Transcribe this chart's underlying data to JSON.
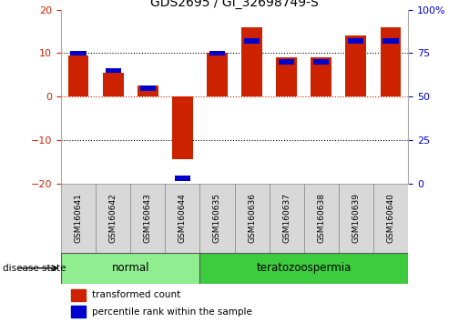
{
  "title": "GDS2695 / GI_32698749-S",
  "samples": [
    "GSM160641",
    "GSM160642",
    "GSM160643",
    "GSM160644",
    "GSM160635",
    "GSM160636",
    "GSM160637",
    "GSM160638",
    "GSM160639",
    "GSM160640"
  ],
  "transformed_count": [
    9.5,
    5.5,
    2.5,
    -14.5,
    10.0,
    16.0,
    9.0,
    9.0,
    14.0,
    16.0
  ],
  "percentile_rank_raw": [
    75,
    65,
    55,
    3,
    75,
    82,
    70,
    70,
    82,
    82
  ],
  "ylim_left": [
    -20,
    20
  ],
  "ylim_right": [
    0,
    100
  ],
  "yticks_left": [
    -20,
    -10,
    0,
    10,
    20
  ],
  "yticks_right": [
    0,
    25,
    50,
    75,
    100
  ],
  "groups": [
    {
      "label": "normal",
      "indices": [
        0,
        1,
        2,
        3
      ],
      "color": "#90ee90"
    },
    {
      "label": "teratozoospermia",
      "indices": [
        4,
        5,
        6,
        7,
        8,
        9
      ],
      "color": "#3dcc3d"
    }
  ],
  "bar_color_red": "#cc2200",
  "bar_color_blue": "#0000cc",
  "bg_color": "#ffffff",
  "dashed_zero_color": "#cc2200",
  "bar_width": 0.6,
  "sample_label_fontsize": 6.5,
  "title_fontsize": 10,
  "legend_fontsize": 7.5,
  "group_label_fontsize": 8.5,
  "disease_state_fontsize": 7.5,
  "axis_tick_fontsize": 8
}
